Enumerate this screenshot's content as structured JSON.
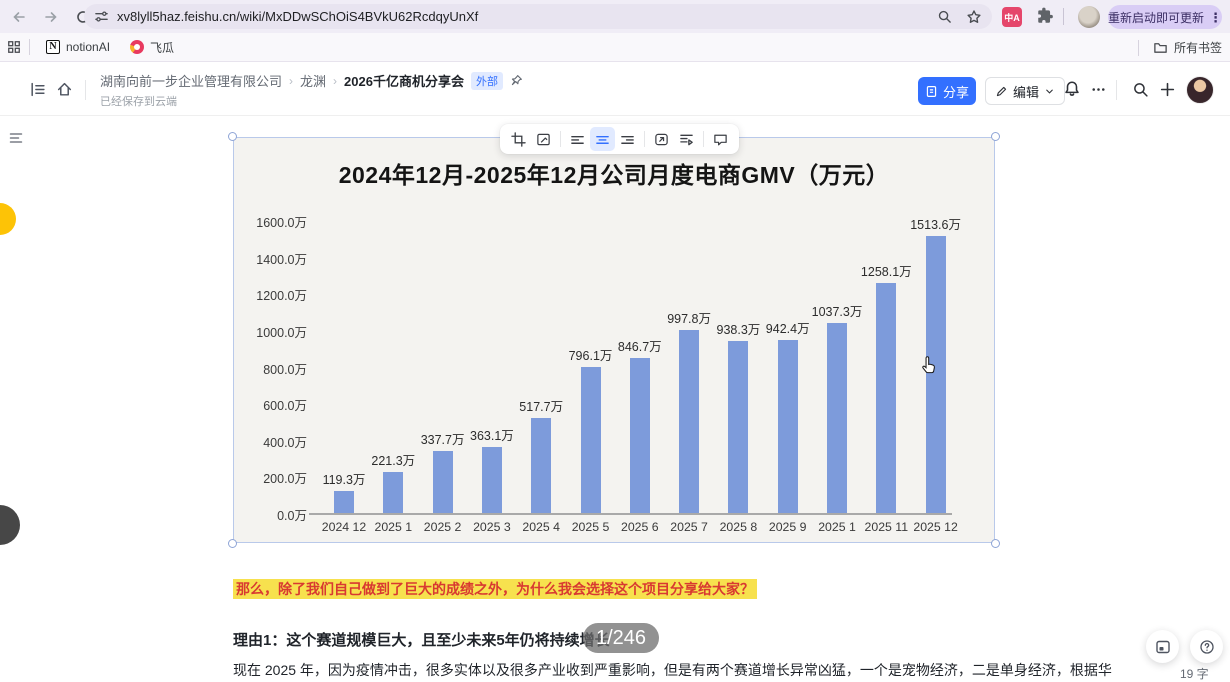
{
  "browser": {
    "url": "xv8lyll5haz.feishu.cn/wiki/MxDDwSChOiS4BVkU62RcdqyUnXf",
    "restart_button": "重新启动即可更新",
    "bookmarks": {
      "notion": "notionAI",
      "feigua": "飞瓜"
    },
    "all_bookmarks": "所有书签"
  },
  "header": {
    "breadcrumb": [
      "湖南向前一步企业管理有限公司",
      "龙渊",
      "2026千亿商机分享会"
    ],
    "badge": "外部",
    "save_status": "已经保存到云端",
    "share_label": "分享",
    "edit_label": "编辑"
  },
  "chart_data": {
    "type": "bar",
    "title": "2024年12月-2025年12月公司月度电商GMV（万元）",
    "categories": [
      "2024 12",
      "2025 1",
      "2025 2",
      "2025 3",
      "2025 4",
      "2025 5",
      "2025 6",
      "2025 7",
      "2025 8",
      "2025 9",
      "2025 1",
      "2025 11",
      "2025 12"
    ],
    "values": [
      119.3,
      221.3,
      337.7,
      363.1,
      517.7,
      796.1,
      846.7,
      997.8,
      938.3,
      942.4,
      1037.3,
      1258.1,
      1513.6
    ],
    "labels": [
      "119.3万",
      "221.3万",
      "337.7万",
      "363.1万",
      "517.7万",
      "796.1万",
      "846.7万",
      "997.8万",
      "938.3万",
      "942.4万",
      "1037.3万",
      "1258.1万",
      "1513.6万"
    ],
    "ylabels": [
      "1600.0万",
      "1400.0万",
      "1200.0万",
      "1000.0万",
      "800.0万",
      "600.0万",
      "400.0万",
      "200.0万",
      "0.0万"
    ],
    "xlabel": "",
    "ylabel": "",
    "ylim": [
      0,
      1600
    ],
    "grid": "off",
    "legend": "none",
    "bar_color": "#7d9bdb"
  },
  "document": {
    "highlight": "那么，除了我们自己做到了巨大的成绩之外，为什么我会选择这个项目分享给大家？",
    "reason_heading": "理由1：这个赛道规模巨大，且至少未来5年仍将持续增长",
    "page_badge": "1/246",
    "body": "现在 2025 年，因为疫情冲击，很多实体以及很多产业收到严重影响，但是有两个赛道增长异常凶猛，一个是宠物经济，二是单身经济，根据华",
    "word_count": "19 字"
  }
}
